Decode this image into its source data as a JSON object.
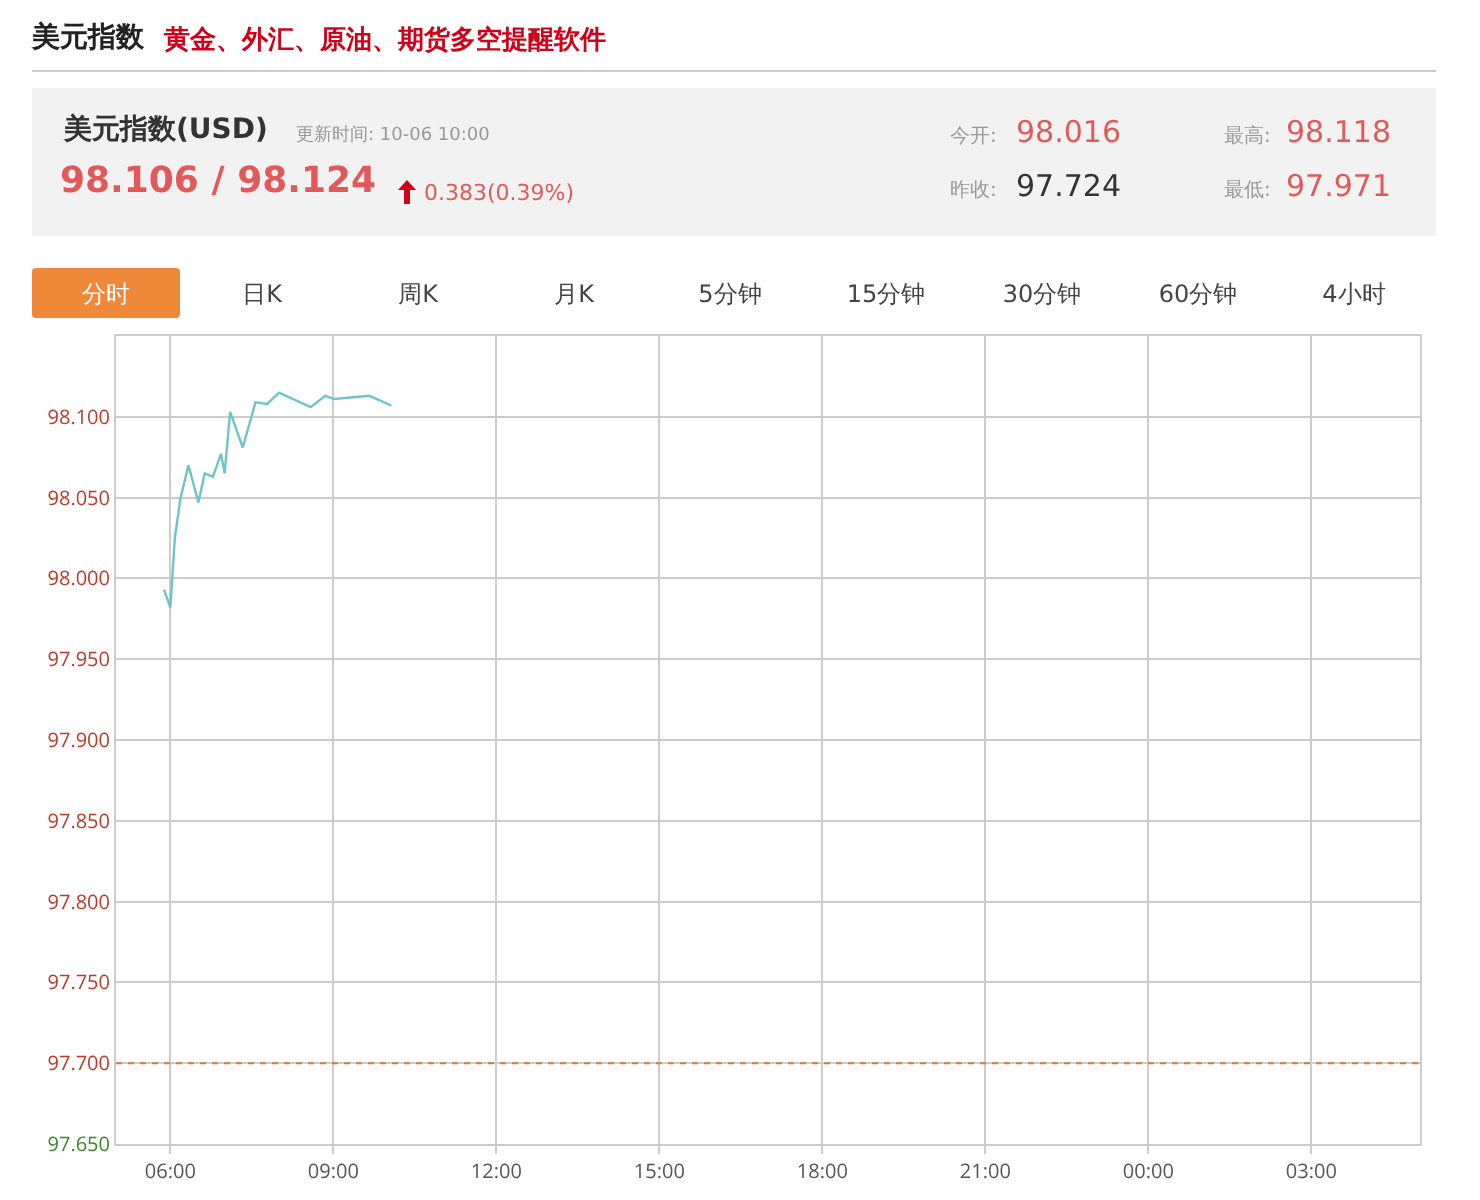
{
  "chart_data": {
    "type": "line",
    "title": "美元指数",
    "subtitle": "黄金、外汇、原油、期货多空提醒软件",
    "annotations": [
      "美元指数(USD)",
      "更新时间: 10-06 10:00",
      "98.106 / 98.124",
      "0.383(0.39%)",
      "今开:",
      "98.016",
      "昨收:",
      "97.724",
      "最高:",
      "98.118",
      "最低:",
      "97.971",
      "分时",
      "日K",
      "周K",
      "月K",
      "5分钟",
      "15分钟",
      "30分钟",
      "60分钟",
      "4小时"
    ],
    "series": [
      {
        "color": "#6cc5c9",
        "x": [
          "--10-06T05:53",
          "--10-06T06:00",
          "--10-06T06:05",
          "--10-06T06:11",
          "--10-06T06:20",
          "--10-06T06:31",
          "--10-06T06:38",
          "--10-06T06:47",
          "--10-06T06:56",
          "--10-06T07:00",
          "--10-06T07:06",
          "--10-06T07:13",
          "--10-06T07:20",
          "--10-06T07:34",
          "--10-06T07:47",
          "--10-06T08:00",
          "--10-06T08:35",
          "--10-06T08:51",
          "--10-06T09:01",
          "--10-06T09:40",
          "--10-06T10:04"
        ],
        "values": [
          97.993,
          97.982,
          98.025,
          98.049,
          98.07,
          98.047,
          98.065,
          98.063,
          98.077,
          98.065,
          98.103,
          98.092,
          98.081,
          98.109,
          98.108,
          98.115,
          98.106,
          98.113,
          98.111,
          98.113,
          98.107
        ]
      }
    ],
    "xlim": [
      "--10-06T05:00",
      "--10-07T05:00"
    ],
    "xticks": [
      {
        "value": "--10-06T06:00",
        "label": "06:00"
      },
      {
        "value": "--10-06T09:00",
        "label": "09:00"
      },
      {
        "value": "--10-06T12:00",
        "label": "12:00"
      },
      {
        "value": "--10-06T15:00",
        "label": "15:00"
      },
      {
        "value": "--10-06T18:00",
        "label": "18:00"
      },
      {
        "value": "--10-06T21:00",
        "label": "21:00"
      },
      {
        "value": "--10-07T00:00",
        "label": "00:00"
      },
      {
        "value": "--10-07T03:00",
        "label": "03:00"
      }
    ],
    "ylim": [
      97.65,
      98.15
    ],
    "yticks": [
      {
        "value": 97.65,
        "label": "97.650"
      },
      {
        "value": 97.7,
        "label": "97.700"
      },
      {
        "value": 97.75,
        "label": "97.750"
      },
      {
        "value": 97.8,
        "label": "97.800"
      },
      {
        "value": 97.85,
        "label": "97.850"
      },
      {
        "value": 97.9,
        "label": "97.900"
      },
      {
        "value": 97.95,
        "label": "97.950"
      },
      {
        "value": 98.0,
        "label": "98.000"
      },
      {
        "value": 98.05,
        "label": "98.050"
      },
      {
        "value": 98.1,
        "label": "98.100"
      }
    ],
    "ref_lines": [
      {
        "axis": "y",
        "value": 97.7,
        "color": "#e8743b",
        "line_style": "dotted"
      }
    ],
    "grid": true,
    "marker": "none",
    "line_style": "solid"
  }
}
